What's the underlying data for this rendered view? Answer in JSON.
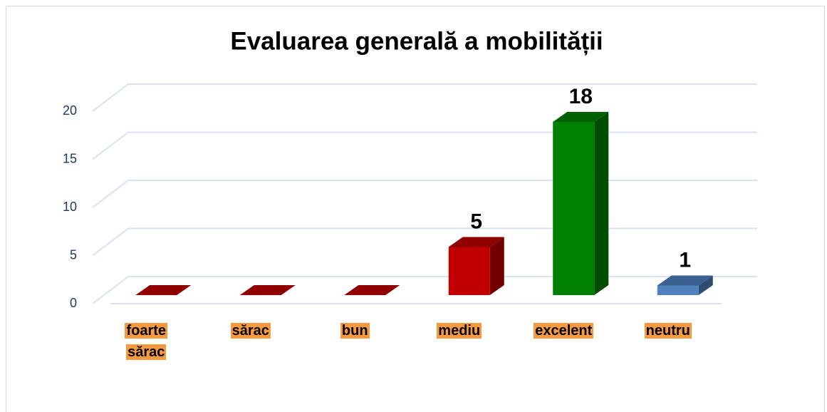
{
  "chart_data": {
    "type": "bar3d",
    "title": "Evaluarea generală a mobilității",
    "categories": [
      "foarte sărac",
      "sărac",
      "bun",
      "mediu",
      "excelent",
      "neutru"
    ],
    "values": [
      0,
      0,
      0,
      5,
      18,
      1
    ],
    "colors": [
      "#c00000",
      "#c00000",
      "#c00000",
      "#c00000",
      "#008000",
      "#4f81bd"
    ],
    "ylim": [
      0,
      20
    ],
    "yticks": [
      0,
      5,
      10,
      15,
      20
    ],
    "grid": true
  }
}
